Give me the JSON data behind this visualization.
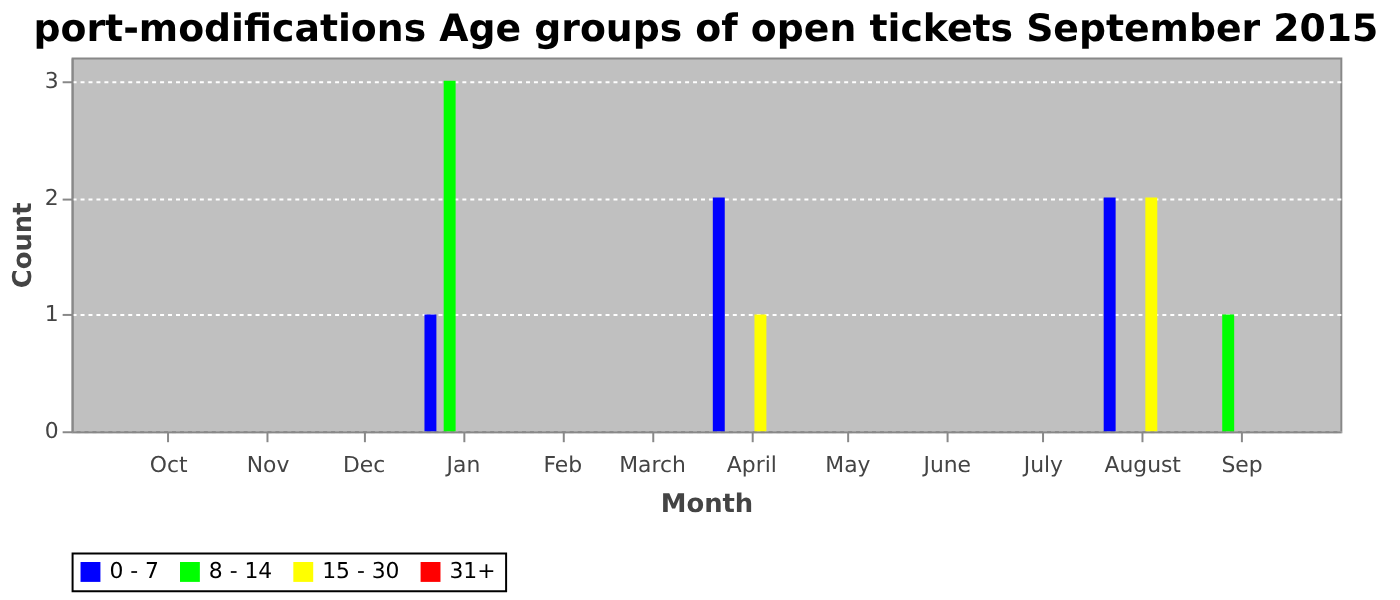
{
  "chart_data": {
    "type": "bar",
    "title": "port-modifications Age groups of open tickets September 2015",
    "xlabel": "Month",
    "ylabel": "Count",
    "xlim": [
      "2014-09-01",
      "2015-10-02"
    ],
    "xticks": [
      {
        "value": "2014-10-01",
        "label": "Oct"
      },
      {
        "value": "2014-11-01",
        "label": "Nov"
      },
      {
        "value": "2014-12-01",
        "label": "Dec"
      },
      {
        "value": "2015-01-01",
        "label": "Jan"
      },
      {
        "value": "2015-02-01",
        "label": "Feb"
      },
      {
        "value": "2015-03-01",
        "label": "March"
      },
      {
        "value": "2015-04-01",
        "label": "April"
      },
      {
        "value": "2015-05-01",
        "label": "May"
      },
      {
        "value": "2015-06-01",
        "label": "June"
      },
      {
        "value": "2015-07-01",
        "label": "July"
      },
      {
        "value": "2015-08-01",
        "label": "August"
      },
      {
        "value": "2015-09-01",
        "label": "Sep"
      }
    ],
    "ylim": [
      0,
      3.2
    ],
    "yticks": [
      0,
      1,
      2,
      3
    ],
    "grid": "y",
    "legend": "bottom",
    "series": [
      {
        "name": "0 - 7",
        "color": "#0000ff",
        "x": [
          "2014-12-22",
          "2015-03-22",
          "2015-07-22"
        ],
        "values": [
          1,
          2,
          2
        ]
      },
      {
        "name": "8 - 14",
        "color": "#00ff00",
        "x": [
          "2014-12-28",
          "2015-08-28"
        ],
        "values": [
          3,
          1
        ]
      },
      {
        "name": "15 - 30",
        "color": "#ffff00",
        "x": [
          "2015-04-04",
          "2015-08-04"
        ],
        "values": [
          1,
          2
        ]
      },
      {
        "name": "31+",
        "color": "#ff0000"
      }
    ]
  }
}
